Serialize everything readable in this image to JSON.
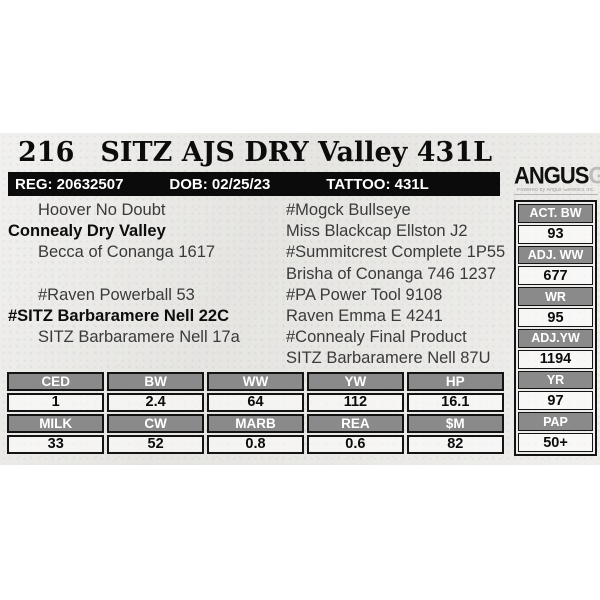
{
  "lot": {
    "number": "216",
    "name": "SITZ AJS DRY Valley 431L"
  },
  "infobar": {
    "reg": "REG: 20632507",
    "dob": "DOB: 02/25/23",
    "tattoo": "TATTOO: 431L"
  },
  "pedigree": {
    "left": [
      "Hoover No Doubt",
      "Connealy Dry Valley",
      "Becca of Conanga 1617",
      "",
      "#Raven Powerball 53",
      "#SITZ Barbaramere Nell 22C",
      "SITZ Barbaramere Nell 17a",
      ""
    ],
    "right": [
      "#Mogck Bullseye",
      "Miss Blackcap Ellston J2",
      "#Summitcrest Complete 1P55",
      "Brisha of Conanga 746 1237",
      "#PA Power Tool 9108",
      "Raven Emma E 4241",
      "#Connealy Final Product",
      "SITZ Barbaramere Nell 87U"
    ]
  },
  "sidebar": {
    "brand": "ANGUS",
    "brand_suffix": "GS",
    "tagline": "Powered by Angus Genetics Inc.",
    "stats": [
      {
        "label": "ACT. BW",
        "value": "93"
      },
      {
        "label": "ADJ. WW",
        "value": "677"
      },
      {
        "label": "WR",
        "value": "95"
      },
      {
        "label": "ADJ.YW",
        "value": "1194"
      },
      {
        "label": "YR",
        "value": "97"
      },
      {
        "label": "PAP",
        "value": "50+"
      }
    ]
  },
  "epd": {
    "row1_headers": [
      "CED",
      "BW",
      "WW",
      "YW",
      "HP"
    ],
    "row1_values": [
      "1",
      "2.4",
      "64",
      "112",
      "16.1"
    ],
    "row2_headers": [
      "MILK",
      "CW",
      "MARB",
      "REA",
      "$M"
    ],
    "row2_values": [
      "33",
      "52",
      "0.8",
      "0.6",
      "82"
    ]
  },
  "colors": {
    "paper": "#eae9e6",
    "bar_black": "#0b0b0b",
    "header_gray": "#8a8a8a",
    "brand_gray": "#bdbcba"
  }
}
